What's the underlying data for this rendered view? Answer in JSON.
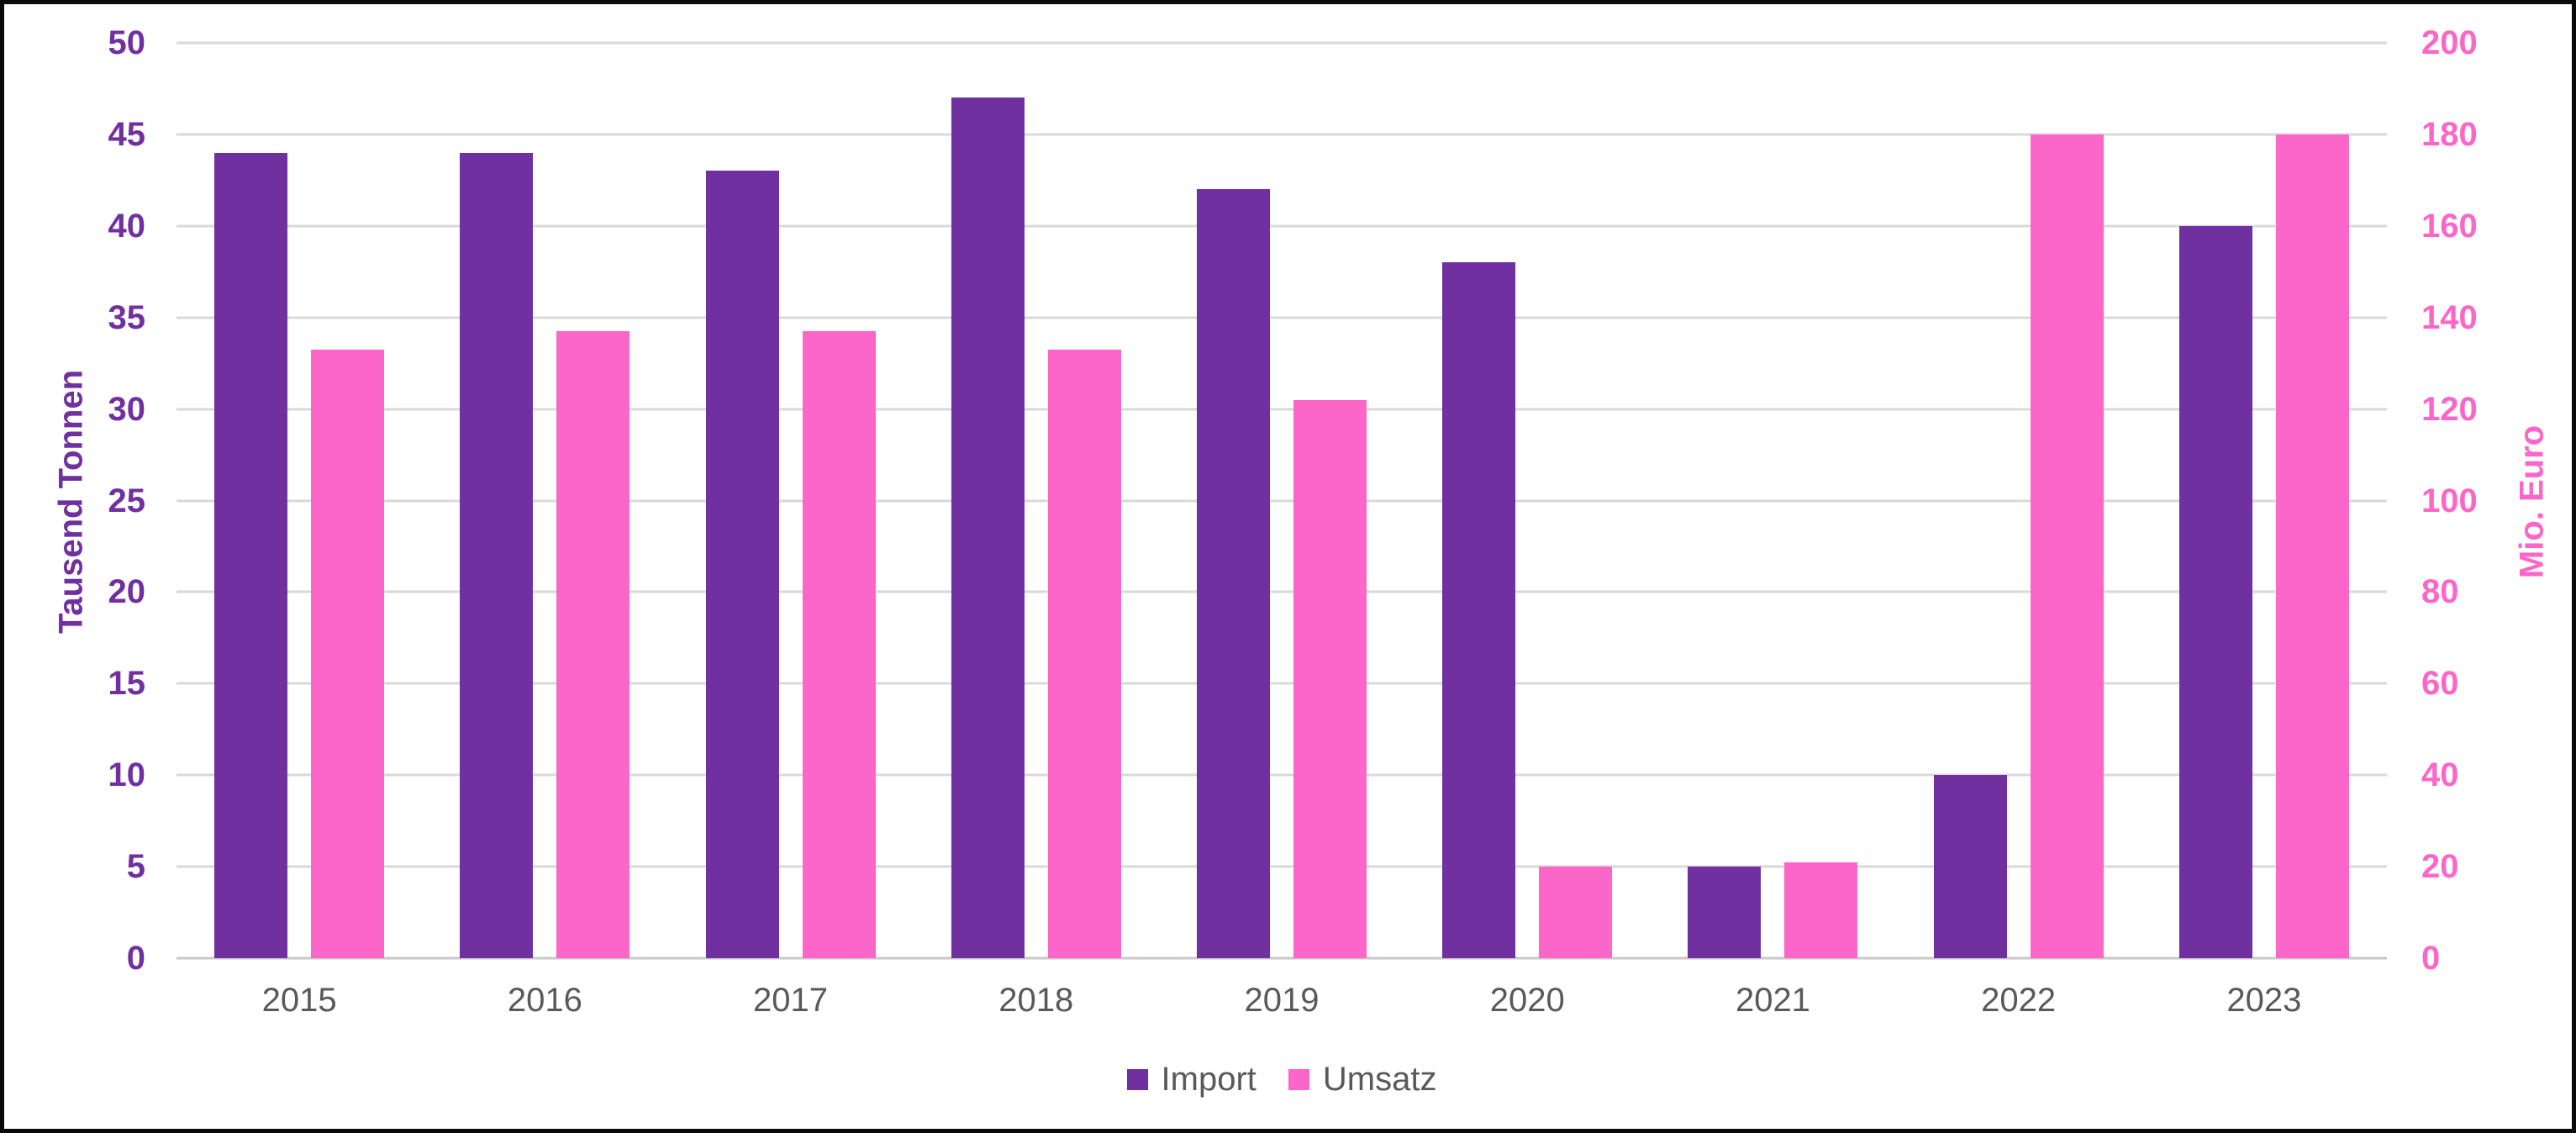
{
  "chart_data": {
    "type": "bar",
    "categories": [
      "2015",
      "2016",
      "2017",
      "2018",
      "2019",
      "2020",
      "2021",
      "2022",
      "2023"
    ],
    "series": [
      {
        "name": "Import",
        "axis": "left",
        "color": "#7030A0",
        "values": [
          44,
          44,
          43,
          47,
          42,
          38,
          5,
          10,
          40
        ]
      },
      {
        "name": "Umsatz",
        "axis": "right",
        "color": "#FC66C8",
        "values": [
          133,
          137,
          137,
          133,
          122,
          20,
          21,
          180,
          180
        ]
      }
    ],
    "left_axis": {
      "title": "Tausend Tonnen",
      "min": 0,
      "max": 50,
      "ticks": [
        0,
        5,
        10,
        15,
        20,
        25,
        30,
        35,
        40,
        45,
        50
      ],
      "color": "#7030A0"
    },
    "right_axis": {
      "title": "Mio. Euro",
      "min": 0,
      "max": 200,
      "ticks": [
        0,
        20,
        40,
        60,
        80,
        100,
        120,
        140,
        160,
        180,
        200
      ],
      "color": "#FC66C8"
    },
    "grid": true,
    "legend_position": "bottom",
    "x_label_color": "#595959",
    "legend_text_color": "#595959",
    "gridline_color": "#D9D9D9",
    "background": "#FFFFFF",
    "frame_color": "#0A0A0A"
  }
}
